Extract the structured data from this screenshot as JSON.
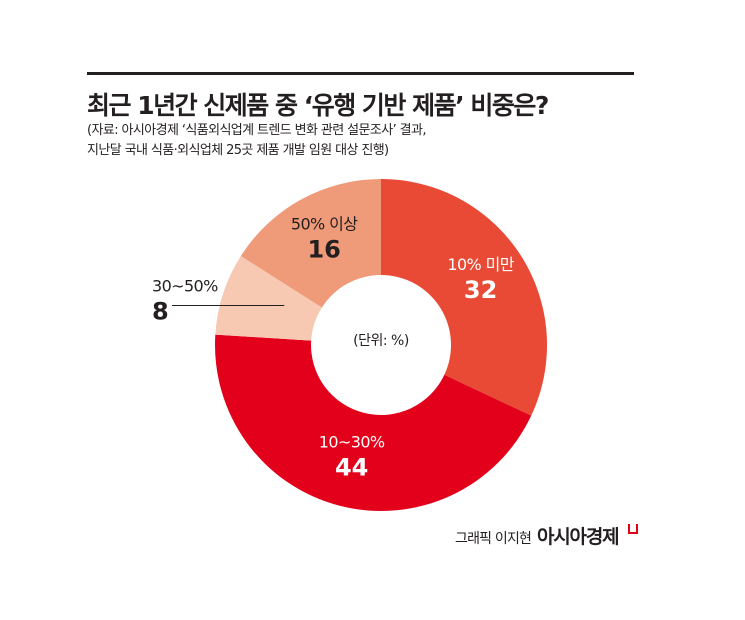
{
  "header": {
    "title": "최근 1년간 신제품 중 ‘유행 기반 제품’ 비중은?",
    "subtitle_line1": "(자료: 아시아경제 ‘식품외식업계 트렌드 변화 관련 설문조사’ 결과,",
    "subtitle_line2": "지난달 국내 식품·외식업체 25곳 제품 개발 임원 대상 진행)"
  },
  "chart_data": {
    "type": "pie",
    "donut": true,
    "unit_note": "(단위: %)",
    "start_angle_deg": 0,
    "direction": "clockwise",
    "slices": [
      {
        "label": "10% 미만",
        "value": 32,
        "color": "#e84a35",
        "text_color": "#ffffff",
        "label_position": "inside"
      },
      {
        "label": "10~30%",
        "value": 44,
        "color": "#e2001a",
        "text_color": "#ffffff",
        "label_position": "inside"
      },
      {
        "label": "30~50%",
        "value": 8,
        "color": "#f7c9b3",
        "text_color": "#231f20",
        "label_position": "outside-left"
      },
      {
        "label": "50% 이상",
        "value": 16,
        "color": "#ef9a78",
        "text_color": "#231f20",
        "label_position": "inside"
      }
    ]
  },
  "footer": {
    "credit": "그래픽 이지현",
    "brand": "아시아경제"
  },
  "colors": {
    "rule": "#231f20",
    "brand_mark": "#e2001a"
  }
}
